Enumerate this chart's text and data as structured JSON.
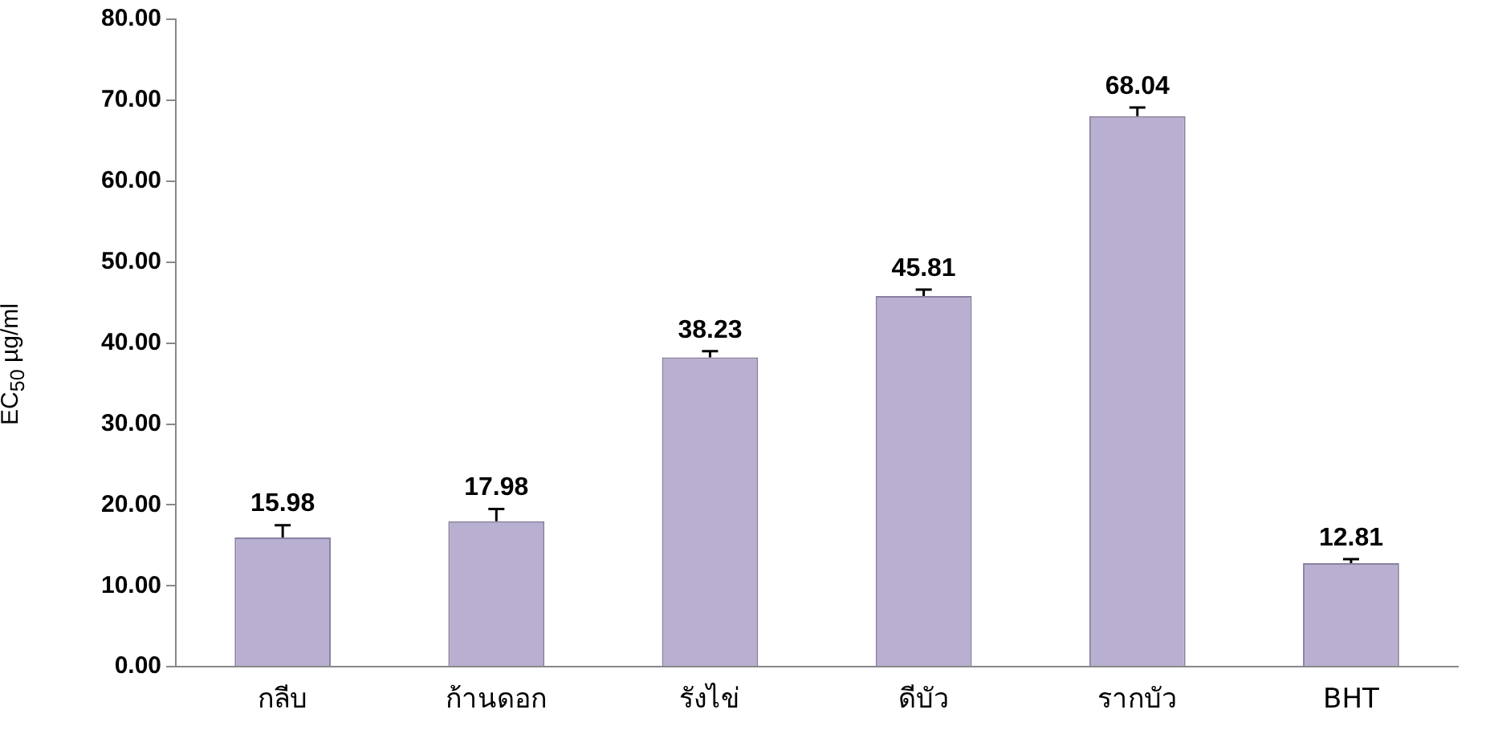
{
  "chart_data": {
    "type": "bar",
    "ylabel": "EC$_{50}$ µg/ml",
    "categories": [
      "กลีบ",
      "ก้านดอก",
      "รังไข่",
      "ดีบัว",
      "รากบัว",
      "BHT"
    ],
    "values": [
      15.98,
      17.98,
      38.23,
      45.81,
      68.04,
      12.81
    ],
    "errors": [
      [
        15.98,
        17.5
      ],
      [
        17.98,
        19.5
      ],
      [
        38.23,
        39.0
      ],
      [
        45.81,
        46.6
      ],
      [
        68.04,
        69.1
      ],
      [
        12.81,
        13.3
      ]
    ],
    "color": "#b9afd0",
    "data_labels": true,
    "grid": false,
    "ylim": [
      0,
      80
    ],
    "yticks": [
      {
        "value": 0,
        "label": "0.00"
      },
      {
        "value": 10,
        "label": "10.00"
      },
      {
        "value": 20,
        "label": "20.00"
      },
      {
        "value": 30,
        "label": "30.00"
      },
      {
        "value": 40,
        "label": "40.00"
      },
      {
        "value": 50,
        "label": "50.00"
      },
      {
        "value": 60,
        "label": "60.00"
      },
      {
        "value": 70,
        "label": "70.00"
      },
      {
        "value": 80,
        "label": "80.00"
      }
    ]
  }
}
